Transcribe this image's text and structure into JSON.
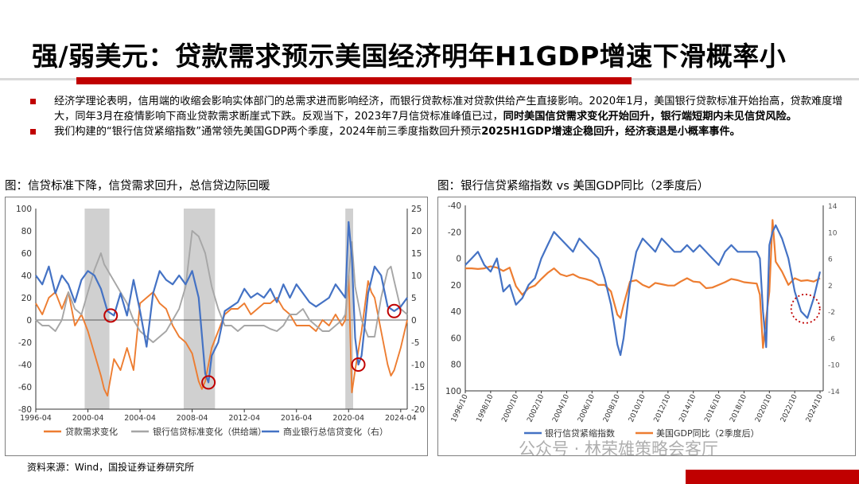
{
  "title": "强/弱美元：贷款需求预示美国经济明年H1GDP增速下滑概率小",
  "bullets": [
    {
      "normal": "经济学理论表明，信用端的收缩会影响实体部门的总需求进而影响经济，而银行贷款标准对贷款供给产生直接影响。2020年1月，美国银行贷款标准开始抬高，贷款难度增大，同年3月在疫情影响下商业贷款需求断崖式下跌。反观当下，2023年7月信贷标准峰值已过，",
      "bold": "同时美国信贷需求变化开始回升，银行端短期内未见信贷风险。"
    },
    {
      "normal": "我们构建的“银行信贷紧缩指数”通常领先美国GDP两个季度，2024年前三季度指数回升预示",
      "bold1": "2025H1GDP增速企稳回升",
      "mid": "，",
      "bold2": "经济衰退是小概率事件。"
    }
  ],
  "captions": {
    "left": "图：信贷标准下降，信贷需求回升，总信贷边际回暖",
    "right": "图：银行信贷紧缩指数 vs 美国GDP同比（2季度后）"
  },
  "source": "资料来源：Wind，国投证券证券研究所",
  "watermark": "公众号 · 林荣雄策略会客厅",
  "colors": {
    "accent": "#c00000",
    "orange": "#ed7d31",
    "blue": "#4472c4",
    "gray": "#a6a6a6",
    "shade": "#d0d0d0"
  },
  "chart_data": [
    {
      "type": "line",
      "title": "",
      "xlabel": "",
      "ylabel": "",
      "x_ticks": [
        "1996-04",
        "2000-04",
        "2004-04",
        "2008-04",
        "2012-04",
        "2016-04",
        "2020-04",
        "2024-04"
      ],
      "x_range": [
        1996.25,
        2024.75
      ],
      "ylim_left": [
        -80,
        100
      ],
      "yticks_left": [
        100,
        80,
        60,
        40,
        20,
        0,
        -20,
        -40,
        -60,
        -80
      ],
      "ylim_right": [
        -20,
        25
      ],
      "yticks_right": [
        25,
        20,
        15,
        10,
        5,
        0,
        -5,
        -10,
        -15,
        -20
      ],
      "recession_shading": [
        [
          2001.2,
          2001.9
        ],
        [
          2007.9,
          2009.5
        ],
        [
          2020.1,
          2020.5
        ]
      ],
      "shaded_periods": [
        [
          2000.0,
          2001.9
        ],
        [
          2007.6,
          2010.0
        ],
        [
          2020.0,
          2020.6
        ]
      ],
      "series": [
        {
          "name": "贷款需求变化",
          "axis": "left",
          "color": "#ed7d31",
          "x": [
            1996.25,
            1996.75,
            1997.25,
            1997.75,
            1998.25,
            1998.75,
            1999.25,
            1999.75,
            2000.25,
            2000.75,
            2001.25,
            2001.5,
            2001.75,
            2002.25,
            2002.75,
            2003.25,
            2003.75,
            2004.25,
            2004.75,
            2005.25,
            2005.75,
            2006.25,
            2006.75,
            2007.25,
            2007.75,
            2008.25,
            2008.75,
            2009.0,
            2009.25,
            2009.75,
            2010.25,
            2010.75,
            2011.25,
            2011.75,
            2012.25,
            2012.75,
            2013.25,
            2013.75,
            2014.25,
            2014.75,
            2015.25,
            2015.75,
            2016.25,
            2016.75,
            2017.25,
            2017.75,
            2018.25,
            2018.75,
            2019.25,
            2019.75,
            2020.0,
            2020.25,
            2020.5,
            2020.75,
            2021.25,
            2021.75,
            2022.0,
            2022.25,
            2022.75,
            2023.25,
            2023.5,
            2023.75,
            2024.25,
            2024.75
          ],
          "values": [
            15,
            5,
            20,
            25,
            10,
            25,
            -5,
            5,
            -10,
            -30,
            -50,
            -62,
            -68,
            -35,
            -45,
            -25,
            -45,
            15,
            20,
            25,
            15,
            10,
            -5,
            -15,
            -20,
            -30,
            -55,
            -62,
            -55,
            -25,
            -10,
            5,
            10,
            10,
            15,
            5,
            10,
            15,
            15,
            20,
            10,
            5,
            -5,
            -5,
            -5,
            -10,
            0,
            -5,
            5,
            -5,
            0,
            40,
            -65,
            -45,
            -10,
            35,
            25,
            20,
            -10,
            -40,
            -50,
            -45,
            -25,
            0
          ]
        },
        {
          "name": "银行信贷标准变化（供给端）",
          "axis": "left",
          "color": "#a6a6a6",
          "x": [
            1996.25,
            1996.75,
            1997.25,
            1997.75,
            1998.25,
            1998.75,
            1999.25,
            1999.75,
            2000.25,
            2000.75,
            2001.25,
            2001.5,
            2001.75,
            2002.25,
            2002.75,
            2003.25,
            2003.75,
            2004.25,
            2004.75,
            2005.25,
            2005.75,
            2006.25,
            2006.75,
            2007.25,
            2007.75,
            2008.0,
            2008.25,
            2008.75,
            2009.25,
            2009.75,
            2010.25,
            2010.75,
            2011.25,
            2011.75,
            2012.25,
            2012.75,
            2013.25,
            2013.75,
            2014.25,
            2014.75,
            2015.25,
            2015.75,
            2016.25,
            2016.75,
            2017.25,
            2017.75,
            2018.25,
            2018.75,
            2019.25,
            2019.75,
            2020.0,
            2020.25,
            2020.5,
            2020.75,
            2021.25,
            2021.75,
            2022.25,
            2022.75,
            2023.25,
            2023.5,
            2023.75,
            2024.25,
            2024.75
          ],
          "values": [
            0,
            -5,
            -5,
            -10,
            0,
            25,
            10,
            5,
            25,
            45,
            60,
            50,
            45,
            35,
            25,
            15,
            0,
            -10,
            -15,
            -20,
            -15,
            -10,
            0,
            10,
            30,
            55,
            80,
            75,
            60,
            30,
            10,
            -5,
            -5,
            -10,
            -5,
            -5,
            -5,
            -5,
            -8,
            -10,
            -5,
            5,
            5,
            10,
            0,
            -5,
            -10,
            -10,
            -5,
            0,
            5,
            40,
            70,
            30,
            0,
            -15,
            -15,
            20,
            45,
            48,
            35,
            10,
            5
          ]
        },
        {
          "name": "商业银行总信贷变化（右）",
          "axis": "right",
          "color": "#4472c4",
          "x": [
            1996.25,
            1996.75,
            1997.25,
            1997.75,
            1998.25,
            1998.75,
            1999.25,
            1999.75,
            2000.25,
            2000.75,
            2001.25,
            2001.75,
            2002.25,
            2002.75,
            2003.25,
            2003.75,
            2004.25,
            2004.75,
            2005.25,
            2005.75,
            2006.25,
            2006.75,
            2007.25,
            2007.75,
            2008.25,
            2008.75,
            2009.25,
            2009.5,
            2009.75,
            2010.25,
            2010.75,
            2011.25,
            2011.75,
            2012.25,
            2012.75,
            2013.25,
            2013.75,
            2014.25,
            2014.75,
            2015.25,
            2015.75,
            2016.25,
            2016.75,
            2017.25,
            2017.75,
            2018.25,
            2018.75,
            2019.25,
            2019.75,
            2020.0,
            2020.25,
            2020.5,
            2020.75,
            2021.0,
            2021.25,
            2021.75,
            2022.25,
            2022.75,
            2023.25,
            2023.75,
            2024.25,
            2024.75
          ],
          "values": [
            10,
            8,
            12,
            6,
            10,
            8,
            4,
            9,
            11,
            10,
            7,
            2,
            1,
            6,
            1,
            9,
            2,
            -6,
            6,
            11,
            9,
            8,
            10,
            8,
            11,
            5,
            -12,
            -14,
            -8,
            -5,
            2,
            3,
            4,
            7,
            5,
            6,
            5,
            7,
            4,
            8,
            5,
            8,
            6,
            4,
            3,
            4,
            5,
            8,
            6,
            5,
            22,
            14,
            -4,
            -10,
            -8,
            6,
            12,
            10,
            3,
            2,
            3,
            5
          ]
        }
      ],
      "legend": [
        "贷款需求变化",
        "银行信贷标准变化（供给端）",
        "商业银行总信贷变化（右）"
      ],
      "legend_position": "bottom",
      "annotations": [
        "red circles mark turning points"
      ]
    },
    {
      "type": "line",
      "title": "",
      "xlabel": "",
      "ylabel": "",
      "x_ticks": [
        "1996/10",
        "1998/10",
        "2000/10",
        "2002/10",
        "2004/10",
        "2006/10",
        "2008/10",
        "2010/10",
        "2012/10",
        "2014/10",
        "2016/10",
        "2018/10",
        "2020/10",
        "2022/10",
        "2024/10"
      ],
      "x_range": [
        1996.75,
        2025.0
      ],
      "ylim_left_inverted": [
        -40,
        100
      ],
      "yticks_left": [
        -40,
        -20,
        0,
        20,
        40,
        60,
        80,
        100
      ],
      "ylim_right": [
        -14,
        14
      ],
      "yticks_right": [
        14,
        10,
        6,
        2,
        -2,
        -6,
        -10,
        -14
      ],
      "series": [
        {
          "name": "银行信贷紧缩指数",
          "axis": "left",
          "color": "#4472c4",
          "x": [
            1996.75,
            1997.25,
            1997.75,
            1998.25,
            1998.75,
            1999.25,
            1999.75,
            2000.25,
            2000.75,
            2001.25,
            2001.75,
            2002.25,
            2002.75,
            2003.25,
            2003.75,
            2004.25,
            2004.75,
            2005.25,
            2005.75,
            2006.25,
            2006.75,
            2007.25,
            2007.75,
            2008.25,
            2008.75,
            2009.0,
            2009.25,
            2009.75,
            2010.25,
            2010.75,
            2011.25,
            2011.75,
            2012.25,
            2012.75,
            2013.25,
            2013.75,
            2014.25,
            2014.75,
            2015.25,
            2015.75,
            2016.25,
            2016.75,
            2017.25,
            2017.75,
            2018.25,
            2018.75,
            2019.25,
            2019.75,
            2020.0,
            2020.25,
            2020.5,
            2020.75,
            2021.0,
            2021.25,
            2021.75,
            2022.25,
            2022.75,
            2023.25,
            2023.75,
            2024.25,
            2024.75
          ],
          "values": [
            5,
            0,
            -5,
            5,
            10,
            0,
            25,
            20,
            35,
            30,
            20,
            15,
            0,
            -10,
            -20,
            -15,
            -10,
            -5,
            -15,
            -10,
            -5,
            0,
            15,
            35,
            65,
            73,
            60,
            20,
            -5,
            -15,
            -10,
            -5,
            -15,
            -10,
            -5,
            -5,
            -10,
            -5,
            -10,
            -5,
            0,
            5,
            -5,
            -10,
            -5,
            -5,
            -5,
            -5,
            0,
            40,
            67,
            -10,
            -20,
            -25,
            -15,
            0,
            25,
            40,
            45,
            30,
            10
          ]
        },
        {
          "name": "美国GDP同比（2季度后）",
          "axis": "right",
          "color": "#ed7d31",
          "x": [
            1996.75,
            1997.25,
            1997.75,
            1998.25,
            1998.75,
            1999.25,
            1999.75,
            2000.25,
            2000.75,
            2001.25,
            2001.75,
            2002.25,
            2002.75,
            2003.25,
            2003.75,
            2004.25,
            2004.75,
            2005.25,
            2005.75,
            2006.25,
            2006.75,
            2007.25,
            2007.75,
            2008.25,
            2008.75,
            2009.0,
            2009.25,
            2009.75,
            2010.25,
            2010.75,
            2011.25,
            2011.75,
            2012.25,
            2012.75,
            2013.25,
            2013.75,
            2014.25,
            2014.75,
            2015.25,
            2015.75,
            2016.25,
            2016.75,
            2017.25,
            2017.75,
            2018.25,
            2018.75,
            2019.25,
            2019.75,
            2020.0,
            2020.25,
            2020.5,
            2020.75,
            2021.0,
            2021.25,
            2021.75,
            2022.25,
            2022.75,
            2023.25,
            2023.75,
            2024.25,
            2024.75
          ],
          "values": [
            4.5,
            4.5,
            4.4,
            4.5,
            4.8,
            4.6,
            4.1,
            4.6,
            1.8,
            0.5,
            1.5,
            1.9,
            2.9,
            3.8,
            4.5,
            3.6,
            3.3,
            3.6,
            3.1,
            2.9,
            2.6,
            2.0,
            2.0,
            1.0,
            -2.5,
            -3.0,
            -1.0,
            2.5,
            2.7,
            2.0,
            1.6,
            2.3,
            2.1,
            1.9,
            1.9,
            2.5,
            3.0,
            2.5,
            2.4,
            1.5,
            1.6,
            2.0,
            2.4,
            2.9,
            2.7,
            2.4,
            2.3,
            2.2,
            0.5,
            -7.5,
            -3.0,
            1.0,
            11.8,
            5.5,
            4.0,
            2.0,
            3.0,
            2.6,
            2.7,
            2.5,
            3.0
          ]
        }
      ],
      "legend": [
        "银行信贷紧缩指数",
        "美国GDP同比（2季度后）"
      ],
      "legend_position": "bottom",
      "annotations": [
        "dotted red circle around 2023-2024 trough"
      ]
    }
  ]
}
